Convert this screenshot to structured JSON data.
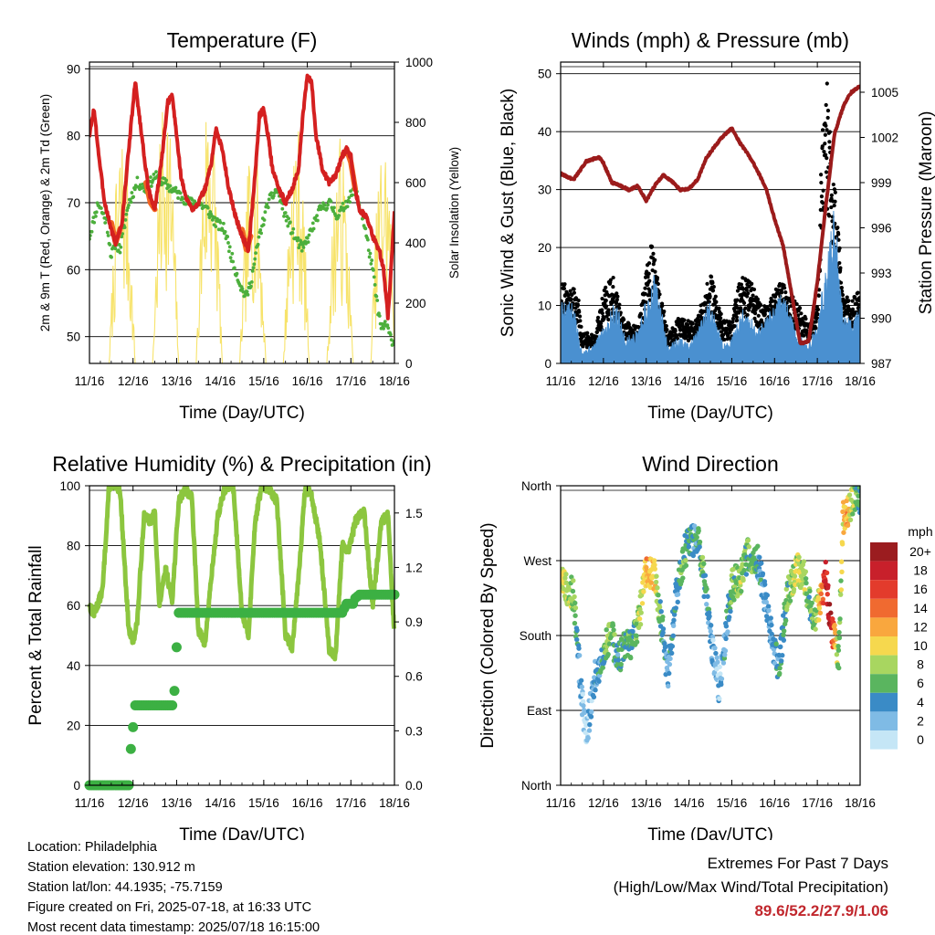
{
  "day_ticks": [
    "11/16",
    "12/16",
    "13/16",
    "14/16",
    "15/16",
    "16/16",
    "17/16",
    "18/16"
  ],
  "chart_data": [
    {
      "id": "temperature",
      "type": "line",
      "title": "Temperature (F)",
      "xlabel": "Time (Day/UTC)",
      "ylabel": "2m & 9m T (Red, Orange) & 2m Td (Green)",
      "ylabel_right": "Solar Insolation (Yellow)",
      "ylim": [
        46,
        91
      ],
      "yticks": [
        "50",
        "60",
        "70",
        "80",
        "90"
      ],
      "ytick_values": [
        50,
        60,
        70,
        80,
        90
      ],
      "ylim_right": [
        0,
        1000
      ],
      "yticks_right": [
        "0",
        "200",
        "400",
        "600",
        "800",
        "1000"
      ],
      "grid": true,
      "series": [
        {
          "name": "2m T",
          "color": "#d42020",
          "style": "line",
          "x": [
            0,
            0.1,
            0.25,
            0.35,
            0.5,
            0.6,
            0.75,
            0.9,
            1.05,
            1.2,
            1.35,
            1.5,
            1.65,
            1.8,
            1.9,
            2.0,
            2.1,
            2.2,
            2.35,
            2.5,
            2.65,
            2.8,
            2.9,
            3.05,
            3.2,
            3.35,
            3.5,
            3.65,
            3.8,
            3.9,
            4.0,
            4.1,
            4.2,
            4.35,
            4.5,
            4.65,
            4.8,
            4.9,
            5.0,
            5.1,
            5.2,
            5.35,
            5.5,
            5.65,
            5.8,
            5.9,
            6.0,
            6.1,
            6.2,
            6.35,
            6.5,
            6.65,
            6.75,
            6.85,
            6.95,
            7.0
          ],
          "y": [
            80,
            84,
            75,
            70,
            66,
            64,
            67,
            78,
            88,
            80,
            72,
            69,
            76,
            85,
            86,
            80,
            74,
            71,
            69,
            70,
            72,
            76,
            81,
            78,
            72,
            68,
            65,
            63,
            74,
            83,
            84,
            80,
            75,
            72,
            70,
            72,
            75,
            83,
            89,
            88,
            80,
            75,
            73,
            74,
            77,
            78,
            77,
            72,
            69,
            68,
            65,
            63,
            60,
            53,
            63,
            69
          ]
        },
        {
          "name": "9m T",
          "color": "#f26522",
          "style": "line",
          "x": [
            0.5,
            0.6,
            0.7,
            1.3,
            1.4,
            1.5,
            3.5,
            3.6,
            3.7,
            5.9,
            6.0,
            6.1
          ],
          "y": [
            67,
            64,
            66,
            73,
            70,
            69,
            66,
            63,
            65,
            78,
            76,
            72
          ]
        },
        {
          "name": "2m Td",
          "color": "#4caf3c",
          "style": "dots",
          "x": [
            0,
            0.2,
            0.4,
            0.5,
            0.6,
            0.7,
            0.9,
            1.1,
            1.3,
            1.5,
            1.7,
            1.9,
            2.1,
            2.3,
            2.5,
            2.7,
            2.9,
            3.1,
            3.3,
            3.5,
            3.6,
            3.7,
            3.9,
            4.1,
            4.3,
            4.5,
            4.7,
            4.9,
            5.1,
            5.3,
            5.5,
            5.7,
            5.9,
            6.1,
            6.3,
            6.5,
            6.6,
            6.7,
            6.8,
            6.9,
            7.0
          ],
          "y": [
            65,
            70,
            67,
            62,
            64,
            63,
            70,
            73,
            72,
            74,
            73,
            72,
            71,
            70,
            70,
            69,
            67,
            66,
            61,
            57,
            56,
            58,
            65,
            70,
            72,
            68,
            65,
            63,
            66,
            69,
            70,
            68,
            70,
            72,
            67,
            60,
            55,
            51,
            52,
            50,
            49
          ]
        },
        {
          "name": "Solar Insolation",
          "color": "#f7e36b",
          "style": "line",
          "axis": "right",
          "daily_peaks": [
            800,
            960,
            960,
            780,
            820,
            760,
            780,
            840
          ]
        }
      ]
    },
    {
      "id": "winds",
      "type": "line",
      "title": "Winds (mph) & Pressure (mb)",
      "xlabel": "Time (Day/UTC)",
      "ylabel": "Sonic Wind & Gust (Blue, Black)",
      "ylabel_right": "Station Pressure (Maroon)",
      "ylim": [
        0,
        52
      ],
      "yticks": [
        "0",
        "10",
        "20",
        "30",
        "40",
        "50"
      ],
      "ytick_values": [
        0,
        10,
        20,
        30,
        40,
        50
      ],
      "ylim_right": [
        987,
        1007
      ],
      "yticks_right": [
        "987",
        "990",
        "993",
        "996",
        "999",
        "1002",
        "1005"
      ],
      "grid": true,
      "series": [
        {
          "name": "Station Pressure",
          "color": "#9b1b1b",
          "style": "line",
          "axis": "right",
          "x": [
            0,
            0.3,
            0.6,
            0.9,
            1.0,
            1.2,
            1.4,
            1.6,
            1.8,
            2.0,
            2.2,
            2.4,
            2.6,
            2.8,
            3.0,
            3.2,
            3.4,
            3.6,
            3.8,
            4.0,
            4.2,
            4.4,
            4.6,
            4.8,
            5.0,
            5.2,
            5.4,
            5.6,
            5.8,
            6.0,
            6.2,
            6.4,
            6.6,
            6.7,
            6.8,
            6.9,
            7.0
          ],
          "y": [
            999.6,
            999.2,
            1000.4,
            1000.7,
            1000.3,
            999.0,
            998.8,
            998.5,
            998.8,
            997.8,
            998.8,
            999.5,
            999.1,
            998.5,
            998.6,
            999.2,
            1000.6,
            1001.4,
            1002.1,
            1002.6,
            1001.6,
            1000.8,
            999.8,
            998.6,
            996.6,
            994.8,
            991.6,
            988.3,
            988.5,
            992.4,
            997.5,
            1002.2,
            1004.0,
            1004.6,
            1005.0,
            1005.2,
            1005.4
          ]
        },
        {
          "name": "Sonic Wind",
          "color": "#4a90d0",
          "style": "area",
          "x": [
            0,
            0.3,
            0.5,
            0.8,
            1.0,
            1.3,
            1.5,
            1.8,
            2.0,
            2.2,
            2.5,
            2.8,
            3.0,
            3.2,
            3.5,
            3.8,
            4.0,
            4.3,
            4.6,
            4.9,
            5.0,
            5.2,
            5.5,
            5.8,
            6.0,
            6.2,
            6.4,
            6.6,
            6.8,
            7.0
          ],
          "y": [
            10,
            9,
            2,
            3,
            6,
            10,
            4,
            5,
            10,
            14,
            3,
            4,
            3,
            5,
            10,
            3,
            4,
            9,
            5,
            8,
            10,
            11,
            5,
            3,
            6,
            15,
            24,
            8,
            7,
            9
          ]
        },
        {
          "name": "Gust",
          "color": "#000000",
          "style": "dots",
          "x": [
            0,
            0.2,
            0.4,
            0.5,
            0.8,
            1.0,
            1.2,
            1.4,
            1.5,
            1.8,
            2.0,
            2.1,
            2.2,
            2.5,
            2.8,
            3.0,
            3.2,
            3.5,
            3.8,
            4.0,
            4.2,
            4.5,
            4.8,
            5.0,
            5.2,
            5.5,
            5.8,
            6.0,
            6.1,
            6.2,
            6.3,
            6.4,
            6.6,
            6.8,
            7.0
          ],
          "y": [
            14,
            13,
            12,
            5,
            5,
            12,
            15,
            9,
            7,
            6,
            15,
            20,
            18,
            5,
            8,
            7,
            8,
            15,
            7,
            7,
            15,
            13,
            9,
            12,
            14,
            10,
            7,
            10,
            40,
            50,
            38,
            30,
            12,
            10,
            13
          ]
        }
      ]
    },
    {
      "id": "humidity",
      "type": "line",
      "title": "Relative Humidity (%) & Precipitation (in)",
      "xlabel": "Time (Day/UTC)",
      "ylabel": "Percent & Total Rainfall",
      "ylim": [
        0,
        100
      ],
      "yticks": [
        "0",
        "20",
        "40",
        "60",
        "80",
        "100"
      ],
      "ytick_values": [
        0,
        20,
        40,
        60,
        80,
        100
      ],
      "ylim_right": [
        0,
        1.65
      ],
      "yticks_right": [
        "0.0",
        "0.3",
        "0.6",
        "0.9",
        "1.2",
        "1.5"
      ],
      "ytick_values_right": [
        0,
        0.3,
        0.6,
        0.9,
        1.2,
        1.5
      ],
      "grid": true,
      "series": [
        {
          "name": "Relative Humidity",
          "color": "#8cc63f",
          "style": "line",
          "x": [
            0,
            0.1,
            0.3,
            0.45,
            0.55,
            0.7,
            0.9,
            1.0,
            1.1,
            1.25,
            1.4,
            1.5,
            1.6,
            1.75,
            1.9,
            2.05,
            2.2,
            2.35,
            2.5,
            2.65,
            2.8,
            2.95,
            3.1,
            3.3,
            3.5,
            3.65,
            3.8,
            3.95,
            4.1,
            4.3,
            4.5,
            4.65,
            4.8,
            4.95,
            5.1,
            5.3,
            5.5,
            5.65,
            5.8,
            5.95,
            6.1,
            6.3,
            6.5,
            6.7,
            6.85,
            7.0
          ],
          "y": [
            60,
            57,
            65,
            100,
            100,
            99,
            52,
            48,
            55,
            90,
            88,
            91,
            60,
            72,
            62,
            95,
            99,
            96,
            52,
            47,
            70,
            90,
            99,
            100,
            58,
            50,
            88,
            100,
            99,
            95,
            50,
            46,
            70,
            99,
            97,
            80,
            45,
            43,
            80,
            78,
            88,
            92,
            60,
            88,
            90,
            50
          ]
        },
        {
          "name": "Total Precipitation",
          "color": "#3cb043",
          "style": "steps",
          "axis": "right",
          "x": [
            0,
            0.9,
            0.95,
            1.0,
            1.05,
            1.1,
            1.9,
            1.95,
            2.0,
            2.05,
            2.1,
            2.2,
            5.8,
            5.9,
            6.05,
            6.1,
            6.2,
            6.3,
            7.0
          ],
          "y": [
            0.0,
            0.0,
            0.2,
            0.32,
            0.44,
            0.44,
            0.44,
            0.52,
            0.76,
            0.95,
            0.95,
            0.95,
            0.95,
            1.0,
            1.0,
            1.03,
            1.05,
            1.05,
            1.05
          ]
        }
      ]
    },
    {
      "id": "direction",
      "type": "scatter",
      "title": "Wind Direction",
      "xlabel": "Time (Day/UTC)",
      "ylabel": "Direction (Colored By Speed)",
      "ylim": [
        0,
        360
      ],
      "yticks": [
        "North",
        "East",
        "South",
        "West",
        "North"
      ],
      "ytick_values": [
        0,
        90,
        180,
        270,
        360
      ],
      "grid": true,
      "colorbar_title": "mph",
      "colorbar_labels": [
        "20+",
        "18",
        "16",
        "14",
        "12",
        "10",
        "8",
        "6",
        "4",
        "2",
        "0"
      ],
      "colorbar_colors": [
        "#9b1c1f",
        "#c8202b",
        "#e33b2c",
        "#f06a30",
        "#f9a73e",
        "#f6d84e",
        "#a8d660",
        "#5ab55f",
        "#3a8bc6",
        "#7fbbe5",
        "#c5e6f6"
      ],
      "series": [
        {
          "name": "Wind Direction",
          "style": "dots",
          "x": [
            0,
            0.1,
            0.2,
            0.3,
            0.5,
            0.6,
            0.8,
            1.0,
            1.1,
            1.2,
            1.3,
            1.5,
            1.7,
            1.9,
            2.0,
            2.2,
            2.4,
            2.5,
            2.7,
            2.9,
            3.0,
            3.2,
            3.3,
            3.5,
            3.7,
            3.9,
            4.0,
            4.2,
            4.4,
            4.6,
            4.8,
            5.0,
            5.1,
            5.3,
            5.5,
            5.7,
            5.9,
            6.0,
            6.1,
            6.2,
            6.3,
            6.5,
            6.6,
            6.7,
            6.8,
            6.9,
            7.0
          ],
          "y": [
            250,
            240,
            235,
            230,
            100,
            60,
            130,
            160,
            170,
            185,
            150,
            165,
            170,
            220,
            260,
            250,
            180,
            130,
            230,
            280,
            290,
            300,
            270,
            180,
            120,
            200,
            240,
            250,
            280,
            270,
            220,
            160,
            140,
            230,
            260,
            250,
            200,
            210,
            230,
            250,
            200,
            150,
            320,
            330,
            340,
            350,
            345
          ],
          "speed": [
            8,
            9,
            8,
            7,
            2,
            1,
            3,
            5,
            8,
            7,
            4,
            5,
            6,
            9,
            12,
            10,
            4,
            3,
            4,
            6,
            5,
            4,
            6,
            3,
            2,
            4,
            6,
            8,
            6,
            5,
            3,
            3,
            4,
            6,
            9,
            8,
            6,
            8,
            13,
            18,
            20,
            5,
            10,
            12,
            9,
            6,
            4
          ]
        }
      ]
    }
  ],
  "info": {
    "location": "Location: Philadelphia",
    "elevation": "Station elevation: 130.912 m",
    "latlon": "Station lat/lon: 44.1935; -75.7159",
    "created": "Figure created on Fri, 2025-07-18, at 16:33 UTC",
    "recent": "Most recent data timestamp: 2025/07/18 16:15:00"
  },
  "extremes": {
    "heading": "Extremes For Past 7 Days",
    "subheading": "(High/Low/Max Wind/Total Precipitation)",
    "values": "89.6/52.2/27.9/1.06"
  }
}
